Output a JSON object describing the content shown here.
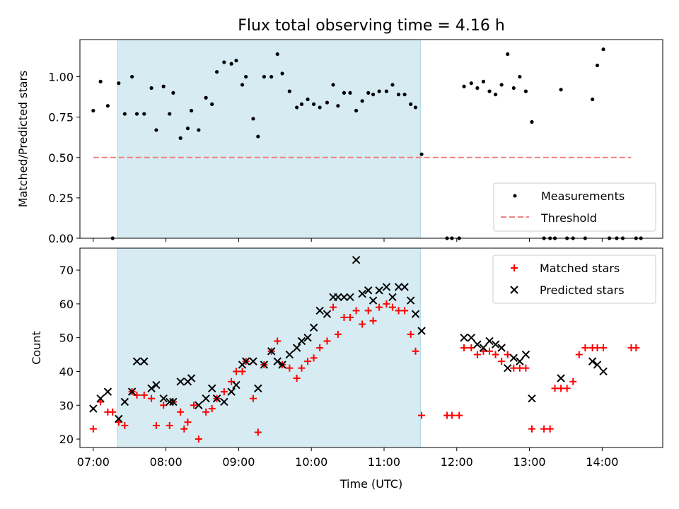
{
  "chart_data": [
    {
      "type": "scatter",
      "title": "Flux total observing time = 4.16 h",
      "ylabel": "Matched/Predicted stars",
      "xlabel": "",
      "ylim": [
        0.0,
        1.23
      ],
      "xlim": [
        "06:49",
        "14:50"
      ],
      "y_ticks": [
        "0.00",
        "0.25",
        "0.50",
        "0.75",
        "1.00"
      ],
      "shaded_interval": [
        "07:20",
        "11:30"
      ],
      "legend": {
        "placement": "lower-right",
        "entries": [
          "Measurements",
          "Threshold"
        ]
      },
      "threshold": {
        "name": "Threshold",
        "value": 0.5,
        "x_range": [
          "07:00",
          "14:24"
        ],
        "color": "#f08080"
      },
      "series": [
        {
          "name": "Measurements",
          "color": "#000000",
          "points": [
            [
              "07:00",
              0.79
            ],
            [
              "07:06",
              0.97
            ],
            [
              "07:12",
              0.82
            ],
            [
              "07:16",
              0.0
            ],
            [
              "07:21",
              0.96
            ],
            [
              "07:26",
              0.77
            ],
            [
              "07:32",
              1.0
            ],
            [
              "07:36",
              0.77
            ],
            [
              "07:42",
              0.77
            ],
            [
              "07:48",
              0.93
            ],
            [
              "07:52",
              0.67
            ],
            [
              "07:58",
              0.94
            ],
            [
              "08:03",
              0.77
            ],
            [
              "08:06",
              0.9
            ],
            [
              "08:12",
              0.62
            ],
            [
              "08:18",
              0.68
            ],
            [
              "08:21",
              0.79
            ],
            [
              "08:27",
              0.67
            ],
            [
              "08:33",
              0.87
            ],
            [
              "08:38",
              0.83
            ],
            [
              "08:42",
              1.03
            ],
            [
              "08:48",
              1.09
            ],
            [
              "08:54",
              1.08
            ],
            [
              "08:58",
              1.1
            ],
            [
              "09:03",
              0.95
            ],
            [
              "09:06",
              1.0
            ],
            [
              "09:12",
              0.74
            ],
            [
              "09:16",
              0.63
            ],
            [
              "09:21",
              1.0
            ],
            [
              "09:27",
              1.0
            ],
            [
              "09:32",
              1.14
            ],
            [
              "09:36",
              1.02
            ],
            [
              "09:42",
              0.91
            ],
            [
              "09:48",
              0.81
            ],
            [
              "09:52",
              0.83
            ],
            [
              "09:57",
              0.86
            ],
            [
              "10:02",
              0.83
            ],
            [
              "10:07",
              0.81
            ],
            [
              "10:13",
              0.84
            ],
            [
              "10:18",
              0.95
            ],
            [
              "10:22",
              0.82
            ],
            [
              "10:27",
              0.9
            ],
            [
              "10:32",
              0.9
            ],
            [
              "10:37",
              0.79
            ],
            [
              "10:42",
              0.85
            ],
            [
              "10:47",
              0.9
            ],
            [
              "10:51",
              0.89
            ],
            [
              "10:56",
              0.91
            ],
            [
              "11:02",
              0.91
            ],
            [
              "11:07",
              0.95
            ],
            [
              "11:12",
              0.89
            ],
            [
              "11:17",
              0.89
            ],
            [
              "11:22",
              0.83
            ],
            [
              "11:26",
              0.81
            ],
            [
              "11:31",
              0.52
            ],
            [
              "11:52",
              0.0
            ],
            [
              "11:56",
              0.0
            ],
            [
              "12:02",
              0.0
            ],
            [
              "12:06",
              0.94
            ],
            [
              "12:12",
              0.96
            ],
            [
              "12:17",
              0.93
            ],
            [
              "12:22",
              0.97
            ],
            [
              "12:27",
              0.91
            ],
            [
              "12:32",
              0.89
            ],
            [
              "12:37",
              0.95
            ],
            [
              "12:42",
              1.14
            ],
            [
              "12:47",
              0.93
            ],
            [
              "12:52",
              1.0
            ],
            [
              "12:57",
              0.91
            ],
            [
              "13:02",
              0.72
            ],
            [
              "13:12",
              0.0
            ],
            [
              "13:17",
              0.0
            ],
            [
              "13:21",
              0.0
            ],
            [
              "13:26",
              0.92
            ],
            [
              "13:31",
              0.0
            ],
            [
              "13:36",
              0.0
            ],
            [
              "13:46",
              0.0
            ],
            [
              "13:52",
              0.86
            ],
            [
              "13:56",
              1.07
            ],
            [
              "14:01",
              1.17
            ],
            [
              "14:06",
              0.0
            ],
            [
              "14:12",
              0.0
            ],
            [
              "14:17",
              0.0
            ],
            [
              "14:28",
              0.0
            ],
            [
              "14:32",
              0.0
            ]
          ]
        }
      ]
    },
    {
      "type": "scatter",
      "title": "",
      "xlabel": "Time (UTC)",
      "ylabel": "Count",
      "ylim": [
        17.5,
        76.5
      ],
      "xlim": [
        "06:49",
        "14:50"
      ],
      "y_ticks": [
        "20",
        "30",
        "40",
        "50",
        "60",
        "70"
      ],
      "x_ticks": [
        "07:00",
        "08:00",
        "09:00",
        "10:00",
        "11:00",
        "12:00",
        "13:00",
        "14:00"
      ],
      "shaded_interval": [
        "07:20",
        "11:30"
      ],
      "legend": {
        "placement": "upper-right",
        "entries": [
          "Matched stars",
          "Predicted stars"
        ]
      },
      "series": [
        {
          "name": "Matched stars",
          "marker": "plus",
          "color": "#ff0000",
          "points": [
            [
              "07:00",
              23
            ],
            [
              "07:06",
              31
            ],
            [
              "07:12",
              28
            ],
            [
              "07:16",
              28
            ],
            [
              "07:21",
              25
            ],
            [
              "07:26",
              24
            ],
            [
              "07:32",
              34
            ],
            [
              "07:36",
              33
            ],
            [
              "07:42",
              33
            ],
            [
              "07:48",
              32
            ],
            [
              "07:52",
              24
            ],
            [
              "07:58",
              30
            ],
            [
              "08:03",
              24
            ],
            [
              "08:06",
              31
            ],
            [
              "08:12",
              28
            ],
            [
              "08:15",
              23
            ],
            [
              "08:18",
              25
            ],
            [
              "08:23",
              30
            ],
            [
              "08:27",
              20
            ],
            [
              "08:33",
              28
            ],
            [
              "08:38",
              29
            ],
            [
              "08:42",
              32
            ],
            [
              "08:48",
              34
            ],
            [
              "08:54",
              37
            ],
            [
              "08:58",
              40
            ],
            [
              "09:03",
              40
            ],
            [
              "09:06",
              43
            ],
            [
              "09:12",
              32
            ],
            [
              "09:16",
              22
            ],
            [
              "09:21",
              42
            ],
            [
              "09:27",
              46
            ],
            [
              "09:32",
              49
            ],
            [
              "09:36",
              42
            ],
            [
              "09:42",
              41
            ],
            [
              "09:48",
              38
            ],
            [
              "09:52",
              41
            ],
            [
              "09:57",
              43
            ],
            [
              "10:02",
              44
            ],
            [
              "10:07",
              47
            ],
            [
              "10:13",
              49
            ],
            [
              "10:18",
              59
            ],
            [
              "10:22",
              51
            ],
            [
              "10:27",
              56
            ],
            [
              "10:32",
              56
            ],
            [
              "10:37",
              58
            ],
            [
              "10:42",
              54
            ],
            [
              "10:47",
              58
            ],
            [
              "10:51",
              55
            ],
            [
              "10:56",
              59
            ],
            [
              "11:02",
              60
            ],
            [
              "11:07",
              59
            ],
            [
              "11:12",
              58
            ],
            [
              "11:17",
              58
            ],
            [
              "11:22",
              51
            ],
            [
              "11:26",
              46
            ],
            [
              "11:31",
              27
            ],
            [
              "11:52",
              27
            ],
            [
              "11:56",
              27
            ],
            [
              "12:02",
              27
            ],
            [
              "12:06",
              47
            ],
            [
              "12:12",
              47
            ],
            [
              "12:17",
              45
            ],
            [
              "12:22",
              46
            ],
            [
              "12:27",
              46
            ],
            [
              "12:32",
              45
            ],
            [
              "12:37",
              43
            ],
            [
              "12:42",
              45
            ],
            [
              "12:47",
              41
            ],
            [
              "12:52",
              41
            ],
            [
              "12:57",
              41
            ],
            [
              "13:02",
              23
            ],
            [
              "13:12",
              23
            ],
            [
              "13:17",
              23
            ],
            [
              "13:21",
              35
            ],
            [
              "13:26",
              35
            ],
            [
              "13:31",
              35
            ],
            [
              "13:36",
              37
            ],
            [
              "13:41",
              45
            ],
            [
              "13:46",
              47
            ],
            [
              "13:52",
              47
            ],
            [
              "13:56",
              47
            ],
            [
              "14:01",
              47
            ],
            [
              "14:24",
              47
            ],
            [
              "14:28",
              47
            ]
          ]
        },
        {
          "name": "Predicted stars",
          "marker": "x",
          "color": "#000000",
          "points": [
            [
              "07:00",
              29
            ],
            [
              "07:06",
              32
            ],
            [
              "07:12",
              34
            ],
            [
              "07:21",
              26
            ],
            [
              "07:26",
              31
            ],
            [
              "07:32",
              34
            ],
            [
              "07:36",
              43
            ],
            [
              "07:42",
              43
            ],
            [
              "07:48",
              35
            ],
            [
              "07:52",
              36
            ],
            [
              "07:58",
              32
            ],
            [
              "08:03",
              31
            ],
            [
              "08:06",
              31
            ],
            [
              "08:12",
              37
            ],
            [
              "08:18",
              37
            ],
            [
              "08:21",
              38
            ],
            [
              "08:27",
              30
            ],
            [
              "08:33",
              32
            ],
            [
              "08:38",
              35
            ],
            [
              "08:42",
              32
            ],
            [
              "08:48",
              31
            ],
            [
              "08:54",
              34
            ],
            [
              "08:58",
              36
            ],
            [
              "09:03",
              42
            ],
            [
              "09:06",
              43
            ],
            [
              "09:12",
              43
            ],
            [
              "09:16",
              35
            ],
            [
              "09:21",
              42
            ],
            [
              "09:27",
              46
            ],
            [
              "09:32",
              43
            ],
            [
              "09:36",
              42
            ],
            [
              "09:42",
              45
            ],
            [
              "09:48",
              47
            ],
            [
              "09:52",
              49
            ],
            [
              "09:57",
              50
            ],
            [
              "10:02",
              53
            ],
            [
              "10:07",
              58
            ],
            [
              "10:13",
              57
            ],
            [
              "10:18",
              62
            ],
            [
              "10:22",
              62
            ],
            [
              "10:27",
              62
            ],
            [
              "10:32",
              62
            ],
            [
              "10:37",
              73
            ],
            [
              "10:42",
              63
            ],
            [
              "10:47",
              64
            ],
            [
              "10:51",
              61
            ],
            [
              "10:56",
              64
            ],
            [
              "11:02",
              65
            ],
            [
              "11:07",
              62
            ],
            [
              "11:12",
              65
            ],
            [
              "11:17",
              65
            ],
            [
              "11:22",
              61
            ],
            [
              "11:26",
              57
            ],
            [
              "11:31",
              52
            ],
            [
              "12:06",
              50
            ],
            [
              "12:12",
              50
            ],
            [
              "12:17",
              48
            ],
            [
              "12:22",
              47
            ],
            [
              "12:27",
              49
            ],
            [
              "12:32",
              48
            ],
            [
              "12:37",
              47
            ],
            [
              "12:42",
              41
            ],
            [
              "12:47",
              44
            ],
            [
              "12:52",
              43
            ],
            [
              "12:57",
              45
            ],
            [
              "13:02",
              32
            ],
            [
              "13:26",
              38
            ],
            [
              "13:52",
              43
            ],
            [
              "13:56",
              42
            ],
            [
              "14:01",
              40
            ]
          ]
        }
      ]
    }
  ]
}
